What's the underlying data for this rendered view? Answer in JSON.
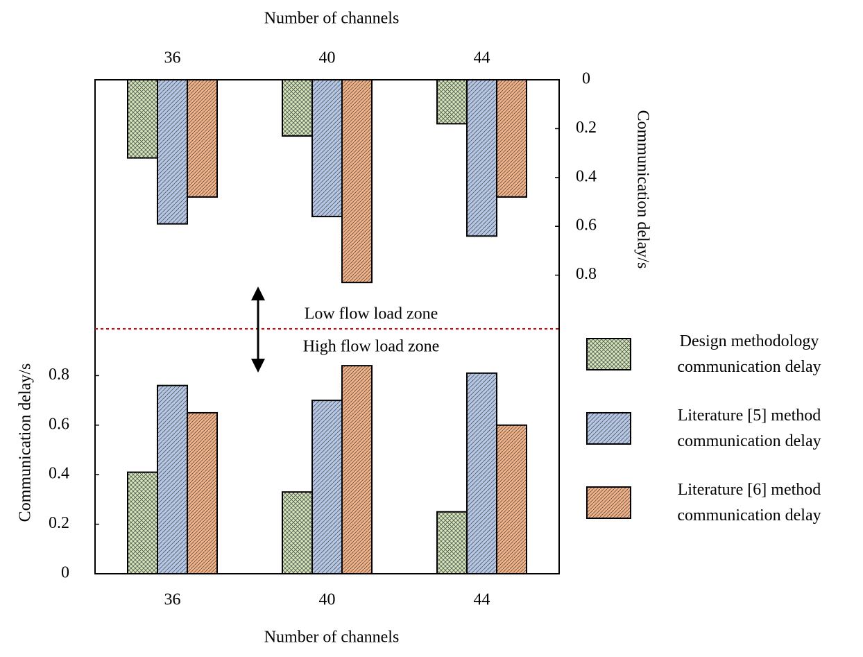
{
  "chart_data": [
    {
      "type": "bar",
      "x_label": "Number of channels",
      "y_label": "Communication delay/s",
      "categories": [
        "36",
        "40",
        "44"
      ],
      "inverted": true,
      "ylim": [
        0,
        1
      ],
      "yticks": [
        0,
        0.2,
        0.4,
        0.6,
        0.8
      ],
      "annotation": "Low flow load zone",
      "series": [
        {
          "color": "#d5e8b8",
          "values": [
            0.32,
            0.23,
            0.18
          ]
        },
        {
          "color": "#b4c7e7",
          "values": [
            0.59,
            0.56,
            0.64
          ]
        },
        {
          "color": "#f4b183",
          "values": [
            0.48,
            0.83,
            0.48
          ]
        }
      ]
    },
    {
      "type": "bar",
      "x_label": "Number of channels",
      "y_label": "Communication delay/s",
      "categories": [
        "36",
        "40",
        "44"
      ],
      "inverted": false,
      "ylim": [
        0,
        1
      ],
      "yticks": [
        0,
        0.2,
        0.4,
        0.6,
        0.8
      ],
      "annotation": "High flow load zone",
      "series": [
        {
          "name": "Design methodology communication delay",
          "color": "#d5e8b8",
          "values": [
            0.41,
            0.33,
            0.25
          ]
        },
        {
          "name": "Literature [5] method communication delay",
          "color": "#b4c7e7",
          "values": [
            0.76,
            0.7,
            0.81
          ]
        },
        {
          "name": "Literature [6] method communication delay",
          "color": "#f4b183",
          "values": [
            0.65,
            0.84,
            0.6
          ]
        }
      ]
    }
  ]
}
